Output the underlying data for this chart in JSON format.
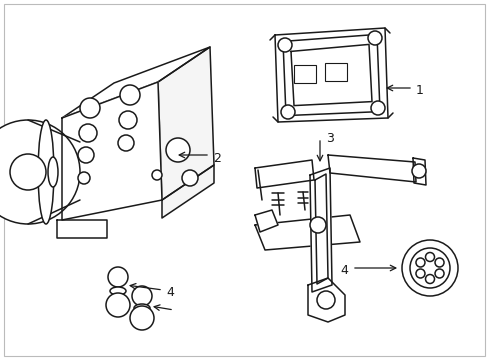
{
  "bg_color": "#ffffff",
  "line_color": "#1a1a1a",
  "line_width": 1.1,
  "fig_width": 4.89,
  "fig_height": 3.6,
  "dpi": 100,
  "part1_label": "1",
  "part2_label": "2",
  "part3_label": "3",
  "part4_label": "4"
}
